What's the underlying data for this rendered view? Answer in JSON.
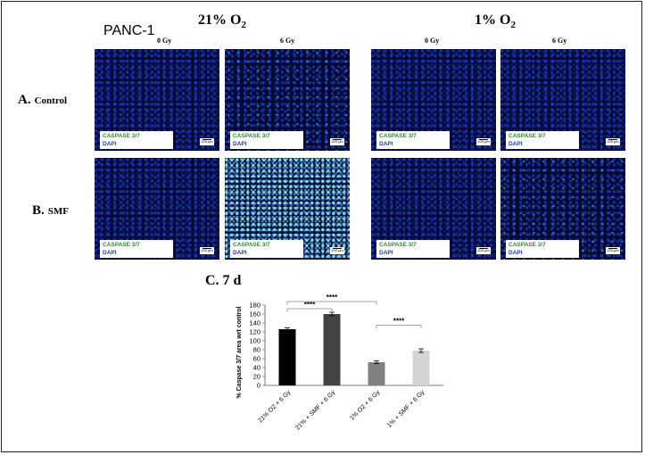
{
  "header": {
    "cell_line": "PANC-1",
    "conditions": [
      {
        "label_main": "21% O",
        "label_sub": "2"
      },
      {
        "label_main": "1% O",
        "label_sub": "2"
      }
    ],
    "doses": [
      "0 Gy",
      "6 Gy",
      "0 Gy",
      "6 Gy"
    ]
  },
  "rows": [
    {
      "letter": "A.",
      "name": "Control"
    },
    {
      "letter": "B.",
      "name": "SMF"
    }
  ],
  "panel_legend": {
    "caspase": "CASPASE 3/7",
    "dapi": "DAPI",
    "scale": "100 µm"
  },
  "colors": {
    "caspase": "#2e8b2e",
    "dapi": "#1c3fa0"
  },
  "chart": {
    "title": "C. 7 d"
  },
  "chart_data": {
    "type": "bar",
    "categories": [
      "21% O2 + 6 Gy",
      "21% + SMF + 6 Gy",
      "1% O2 + 6 Gy",
      "1% + SMF + 6 Gy"
    ],
    "values": [
      126,
      160,
      52,
      78
    ],
    "errors": [
      3,
      4,
      3,
      4
    ],
    "colors": [
      "#000000",
      "#444444",
      "#808080",
      "#d3d3d3"
    ],
    "ylabel": "% Caspase 3/7 area wrt control",
    "xlabel": "",
    "ylim": [
      0,
      180
    ],
    "yticks": [
      0,
      20,
      40,
      60,
      80,
      100,
      120,
      140,
      160,
      180
    ],
    "grid": false,
    "significance": [
      {
        "from": 0,
        "to": 1,
        "label": "****"
      },
      {
        "from": 0,
        "to": 2,
        "label": "****"
      },
      {
        "from": 2,
        "to": 3,
        "label": "****"
      }
    ]
  }
}
